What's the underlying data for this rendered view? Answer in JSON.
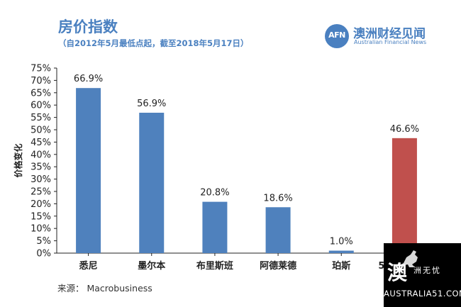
{
  "title": "房价指数",
  "subtitle": "（自2012年5月最低点起，截至2018年5月17日）",
  "brand": {
    "logo": "AFN",
    "name": "澳洲财经见闻",
    "english": "Australian Financial News"
  },
  "source": "来源： Macrobusiness",
  "corner_badge": {
    "big_char": "澳",
    "sub": "洲无忧",
    "url": "AUSTRALIA51.COM",
    "icon": "kangaroo-icon"
  },
  "colors": {
    "bar": "#4f81bd",
    "highlight_bar": "#c0504d",
    "accent": "#4a80c0"
  },
  "chart_data": {
    "type": "bar",
    "title": "房价指数",
    "subtitle": "（自2012年5月最低点起，截至2018年5月17日）",
    "ylabel": "价格变化",
    "xlabel": "",
    "categories": [
      "悉尼",
      "墨尔本",
      "布里斯班",
      "阿德莱德",
      "珀斯",
      "5大首府城市"
    ],
    "values": [
      66.9,
      56.9,
      20.8,
      18.6,
      1.0,
      46.6
    ],
    "data_labels": [
      "66.9%",
      "56.9%",
      "20.8%",
      "18.6%",
      "1.0%",
      "46.6%"
    ],
    "highlight_index": 5,
    "ylim": [
      0,
      75
    ],
    "yticks": [
      "0%",
      "5%",
      "10%",
      "15%",
      "20%",
      "25%",
      "30%",
      "35%",
      "40%",
      "45%",
      "50%",
      "55%",
      "60%",
      "65%",
      "70%",
      "75%"
    ],
    "grid": false
  }
}
